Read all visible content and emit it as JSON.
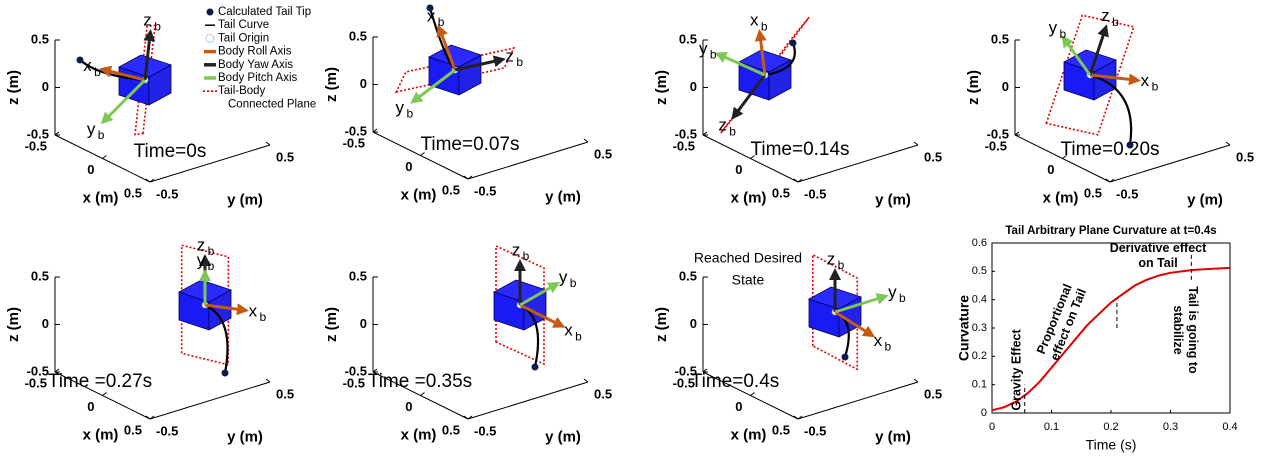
{
  "chart_data": [
    {
      "type": "3d",
      "title": "Time=0s",
      "xlabel": "x (m)",
      "ylabel": "y (m)",
      "zlabel": "z (m)",
      "xlim": [
        -0.5,
        0.5
      ],
      "ylim": [
        -0.5,
        0.5
      ],
      "zlim": [
        -0.5,
        0.5
      ],
      "xticks": [
        -0.5,
        0,
        0.5
      ],
      "yticks": [
        -0.5,
        0.5
      ],
      "zticks": [
        -0.5,
        0,
        0.5
      ],
      "axis_labels": [
        {
          "text": "x",
          "sub": "b",
          "color": "#c55a11"
        },
        {
          "text": "z",
          "sub": "b",
          "color": "#000000"
        },
        {
          "text": "y",
          "sub": "b",
          "color": "#7dc855"
        }
      ],
      "legend": [
        {
          "name": [
            "Calculated Tail Tip"
          ],
          "marker": "dot",
          "color": "#0d1b4d"
        },
        {
          "name": [
            "Tail Curve"
          ],
          "marker": "line",
          "color": "#000000"
        },
        {
          "name": [
            "Tail Origin"
          ],
          "marker": "circle",
          "color": "#7ab0e0"
        },
        {
          "name": [
            "Body Roll Axis"
          ],
          "marker": "bar",
          "color": "#c55a11"
        },
        {
          "name": [
            "Body Yaw Axis"
          ],
          "marker": "bar",
          "color": "#222222"
        },
        {
          "name": [
            "Body Pitch Axis"
          ],
          "marker": "bar",
          "color": "#7dc855"
        },
        {
          "name": [
            "Tail-Body",
            "Connected Plane"
          ],
          "marker": "dotted",
          "color": "#e00000"
        }
      ]
    },
    {
      "type": "3d",
      "title": "Time=0.07s",
      "xlabel": "x (m)",
      "ylabel": "y (m)",
      "zlabel": "z (m)",
      "xlim": [
        -0.5,
        0.5
      ],
      "ylim": [
        -0.5,
        0.5
      ],
      "zlim": [
        -0.5,
        0.5
      ],
      "xticks": [
        -0.5,
        0,
        0.5
      ],
      "yticks": [
        -0.5,
        0.5
      ],
      "zticks": [
        -0.5,
        0,
        0.5
      ],
      "axis_labels": [
        {
          "text": "x",
          "sub": "b",
          "color": "#c55a11"
        },
        {
          "text": "z",
          "sub": "b",
          "color": "#000000"
        },
        {
          "text": "y",
          "sub": "b",
          "color": "#7dc855"
        }
      ]
    },
    {
      "type": "3d",
      "title": "Time=0.14s",
      "xlabel": "x (m)",
      "ylabel": "y (m)",
      "zlabel": "z (m)",
      "xlim": [
        -0.5,
        0.5
      ],
      "ylim": [
        -0.5,
        0.5
      ],
      "zlim": [
        -0.5,
        0.5
      ],
      "xticks": [
        -0.5,
        0,
        0.5
      ],
      "yticks": [
        -0.5,
        0.5
      ],
      "zticks": [
        -0.5,
        0,
        0.5
      ],
      "axis_labels": [
        {
          "text": "x",
          "sub": "b",
          "color": "#c55a11"
        },
        {
          "text": "z",
          "sub": "b",
          "color": "#000000"
        },
        {
          "text": "y",
          "sub": "b",
          "color": "#7dc855"
        }
      ]
    },
    {
      "type": "3d",
      "title": "Time=0.20s",
      "xlabel": "x (m)",
      "ylabel": "y (m)",
      "zlabel": "z (m)",
      "xlim": [
        -0.5,
        0.5
      ],
      "ylim": [
        -0.5,
        0.5
      ],
      "zlim": [
        -0.5,
        0.5
      ],
      "xticks": [
        -0.5,
        0,
        0.5
      ],
      "yticks": [
        -0.5,
        0.5
      ],
      "zticks": [
        -0.5,
        0,
        0.5
      ],
      "axis_labels": [
        {
          "text": "x",
          "sub": "b",
          "color": "#c55a11"
        },
        {
          "text": "z",
          "sub": "b",
          "color": "#000000"
        },
        {
          "text": "y",
          "sub": "b",
          "color": "#7dc855"
        }
      ]
    },
    {
      "type": "3d",
      "title": "Time =0.27s",
      "xlabel": "x (m)",
      "ylabel": "y (m)",
      "zlabel": "z (m)",
      "xlim": [
        -0.5,
        0.5
      ],
      "ylim": [
        -0.5,
        0.5
      ],
      "zlim": [
        -0.5,
        0.5
      ],
      "xticks": [
        -0.5,
        0,
        0.5
      ],
      "yticks": [
        -0.5,
        0.5
      ],
      "zticks": [
        -0.5,
        0,
        0.5
      ],
      "axis_labels": [
        {
          "text": "x",
          "sub": "b",
          "color": "#c55a11"
        },
        {
          "text": "z",
          "sub": "b",
          "color": "#000000"
        },
        {
          "text": "y",
          "sub": "b",
          "color": "#7dc855"
        }
      ]
    },
    {
      "type": "3d",
      "title": "Time =0.35s",
      "xlabel": "x (m)",
      "ylabel": "y (m)",
      "zlabel": "z (m)",
      "xlim": [
        -0.5,
        0.5
      ],
      "ylim": [
        -0.5,
        0.5
      ],
      "zlim": [
        -0.5,
        0.5
      ],
      "xticks": [
        -0.5,
        0,
        0.5
      ],
      "yticks": [
        -0.5,
        0.5
      ],
      "zticks": [
        -0.5,
        0,
        0.5
      ],
      "axis_labels": [
        {
          "text": "x",
          "sub": "b",
          "color": "#c55a11"
        },
        {
          "text": "z",
          "sub": "b",
          "color": "#000000"
        },
        {
          "text": "y",
          "sub": "b",
          "color": "#7dc855"
        }
      ]
    },
    {
      "type": "3d",
      "title": "Time=0.4s",
      "xlabel": "x (m)",
      "ylabel": "y (m)",
      "zlabel": "z (m)",
      "xlim": [
        -0.5,
        0.5
      ],
      "ylim": [
        -0.5,
        0.5
      ],
      "zlim": [
        -0.5,
        0.5
      ],
      "xticks": [
        -0.5,
        0,
        0.5
      ],
      "yticks": [
        -0.5,
        0.5
      ],
      "zticks": [
        -0.5,
        0,
        0.5
      ],
      "annotation": [
        "Reached Desired",
        "State"
      ],
      "axis_labels": [
        {
          "text": "x",
          "sub": "b",
          "color": "#c55a11"
        },
        {
          "text": "z",
          "sub": "b",
          "color": "#000000"
        },
        {
          "text": "y",
          "sub": "b",
          "color": "#7dc855"
        }
      ]
    },
    {
      "type": "line",
      "title": "Tail Arbitrary Plane Curvature at t=0.4s",
      "xlabel": "Time (s)",
      "ylabel": "Curvature",
      "x": [
        0,
        0.02,
        0.04,
        0.06,
        0.08,
        0.1,
        0.12,
        0.14,
        0.16,
        0.18,
        0.2,
        0.22,
        0.24,
        0.26,
        0.28,
        0.3,
        0.32,
        0.34,
        0.36,
        0.38,
        0.4
      ],
      "values": [
        0.01,
        0.02,
        0.04,
        0.07,
        0.11,
        0.16,
        0.21,
        0.26,
        0.31,
        0.35,
        0.39,
        0.42,
        0.45,
        0.47,
        0.485,
        0.495,
        0.5,
        0.505,
        0.508,
        0.51,
        0.512
      ],
      "color": "#e00000",
      "xlim": [
        0,
        0.4
      ],
      "xticks": [
        0,
        0.1,
        0.2,
        0.3,
        0.4
      ],
      "ylim": [
        0,
        0.6
      ],
      "yticks": [
        0,
        0.1,
        0.2,
        0.3,
        0.4,
        0.5,
        0.6
      ],
      "annotations": [
        {
          "text": [
            "Gravity Effect"
          ],
          "line_x": 0.055,
          "line_y": [
            0,
            0.1
          ]
        },
        {
          "text": [
            "Proportional",
            "effect on Tail"
          ]
        },
        {
          "text": [
            "Derivative effect",
            "on Tail"
          ],
          "line_x": 0.21,
          "line_y": [
            0.3,
            0.4
          ]
        },
        {
          "text": [
            "Tail is going to",
            "stabilize"
          ],
          "line_x": 0.335,
          "line_y": [
            0.47,
            0.57
          ]
        }
      ]
    }
  ]
}
